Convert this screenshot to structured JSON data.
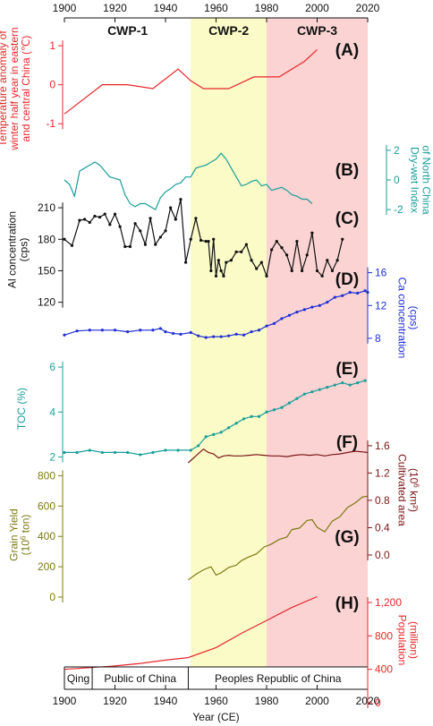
{
  "figure": {
    "xlabel": "Year (CE)",
    "xlim": [
      1900,
      2020
    ],
    "x_ticks": [
      1900,
      1920,
      1940,
      1960,
      1980,
      2000,
      2020
    ],
    "periods": [
      {
        "label": "CWP-1",
        "start": 1900,
        "end": 1950,
        "color": "#ffffff"
      },
      {
        "label": "CWP-2",
        "start": 1950,
        "end": 1980,
        "color": "#fbfbc8"
      },
      {
        "label": "CWP-3",
        "start": 1980,
        "end": 2020,
        "color": "#fbd3d3"
      }
    ],
    "regimes": [
      {
        "label": "Qing",
        "start": 1900,
        "end": 1911
      },
      {
        "label": "Public of China",
        "start": 1911,
        "end": 1949
      },
      {
        "label": "Peoples Republic of China",
        "start": 1949,
        "end": 2020
      }
    ]
  },
  "chart_data": [
    {
      "panel": "(A)",
      "type": "line",
      "color": "#e8262a",
      "ylabel": [
        "Temperature anomaly of",
        "winter half year in eastern",
        "and central China (℃)"
      ],
      "ylim": [
        -1.5,
        1.3
      ],
      "yticks": [
        -1,
        0,
        1
      ],
      "ytick_labels": [
        "-1",
        "0",
        "1"
      ],
      "axis": "left",
      "x": [
        1900,
        1915,
        1925,
        1935,
        1945,
        1950,
        1955,
        1965,
        1975,
        1985,
        1995,
        2000
      ],
      "y": [
        -0.75,
        0.0,
        0.0,
        -0.1,
        0.4,
        0.1,
        -0.1,
        -0.1,
        0.2,
        0.2,
        0.6,
        0.9
      ]
    },
    {
      "panel": "(B)",
      "type": "line",
      "color": "#1a9e9a",
      "ylabel": [
        "Dry-wet Index",
        "of North China"
      ],
      "ylim": [
        -3.2,
        3.2
      ],
      "yticks": [
        -2,
        0,
        2
      ],
      "ytick_labels": [
        "-2",
        "0",
        "2"
      ],
      "axis": "right",
      "x": [
        1900,
        1902,
        1904,
        1906,
        1908,
        1910,
        1912,
        1914,
        1916,
        1918,
        1920,
        1922,
        1924,
        1926,
        1928,
        1930,
        1932,
        1934,
        1936,
        1938,
        1940,
        1942,
        1944,
        1946,
        1948,
        1950,
        1952,
        1954,
        1956,
        1958,
        1960,
        1962,
        1964,
        1966,
        1968,
        1970,
        1972,
        1974,
        1976,
        1978,
        1980,
        1982,
        1984,
        1986,
        1988,
        1990,
        1992,
        1994,
        1996,
        1998
      ],
      "y": [
        0.0,
        -0.3,
        -1.1,
        0.6,
        0.8,
        1.0,
        1.2,
        1.0,
        0.6,
        0.2,
        0.1,
        0.0,
        -1.0,
        -1.6,
        -1.8,
        -1.6,
        -1.6,
        -1.8,
        -2.0,
        -1.2,
        -0.8,
        -0.6,
        -0.3,
        -0.2,
        0.2,
        0.2,
        0.8,
        0.9,
        1.0,
        1.2,
        1.4,
        1.8,
        1.4,
        0.8,
        0.2,
        -0.4,
        -0.3,
        -0.1,
        0.0,
        -0.4,
        -0.3,
        -0.7,
        -0.6,
        -0.5,
        -0.7,
        -1.0,
        -1.1,
        -1.3,
        -1.3,
        -1.6
      ]
    },
    {
      "panel": "(C)",
      "type": "line",
      "color": "#111111",
      "markers": true,
      "ylabel": [
        "Al concentration",
        "(cps)"
      ],
      "ylim": [
        118,
        222
      ],
      "yticks": [
        120,
        150,
        180,
        210
      ],
      "ytick_labels": [
        "120",
        "150",
        "180",
        "210"
      ],
      "axis": "left",
      "x": [
        1900,
        1903,
        1906,
        1908,
        1910,
        1912,
        1914,
        1916,
        1918,
        1920,
        1922,
        1924,
        1926,
        1928,
        1930,
        1932,
        1934,
        1936,
        1938,
        1940,
        1942,
        1944,
        1946,
        1948,
        1950,
        1952,
        1954,
        1956,
        1957,
        1958,
        1959,
        1960,
        1961,
        1962,
        1963,
        1964,
        1966,
        1968,
        1970,
        1972,
        1974,
        1976,
        1978,
        1980,
        1982,
        1984,
        1986,
        1988,
        1990,
        1992,
        1994,
        1996,
        1998,
        2000,
        2002,
        2004,
        2006,
        2008,
        2010
      ],
      "y": [
        180,
        174,
        198,
        199,
        196,
        202,
        201,
        204,
        194,
        204,
        192,
        173,
        173,
        195,
        188,
        175,
        200,
        175,
        182,
        188,
        210,
        199,
        218,
        158,
        180,
        200,
        179,
        178,
        178,
        150,
        180,
        145,
        160,
        150,
        145,
        158,
        160,
        168,
        168,
        175,
        160,
        152,
        158,
        145,
        170,
        178,
        172,
        165,
        150,
        178,
        150,
        165,
        186,
        150,
        145,
        160,
        150,
        160,
        180
      ]
    },
    {
      "panel": "(D)",
      "type": "line",
      "color": "#1f2fd4",
      "markers": true,
      "ylabel": [
        "Ca concentration",
        "(cps)"
      ],
      "ylim": [
        4.5,
        16.5
      ],
      "yticks": [
        8,
        12,
        16
      ],
      "ytick_labels": [
        "8",
        "12",
        "16"
      ],
      "axis": "right",
      "x": [
        1900,
        1905,
        1910,
        1915,
        1920,
        1925,
        1930,
        1935,
        1938,
        1940,
        1943,
        1946,
        1950,
        1953,
        1956,
        1959,
        1962,
        1965,
        1968,
        1971,
        1974,
        1977,
        1980,
        1983,
        1986,
        1989,
        1992,
        1995,
        1998,
        2001,
        2004,
        2007,
        2010,
        2013,
        2016,
        2019,
        2020
      ],
      "y": [
        8.4,
        8.9,
        9.0,
        9.0,
        9.0,
        8.8,
        9.0,
        9.0,
        9.2,
        8.8,
        8.6,
        8.5,
        8.7,
        8.3,
        8.1,
        8.2,
        8.2,
        8.3,
        8.5,
        8.4,
        8.8,
        9.0,
        9.5,
        9.8,
        10.4,
        10.8,
        11.2,
        11.5,
        11.8,
        12.0,
        12.4,
        13.0,
        13.2,
        13.6,
        13.5,
        13.8,
        13.6
      ]
    },
    {
      "panel": "(E)",
      "type": "line",
      "color": "#1a9e9a",
      "markers": true,
      "ylabel": [
        "TOC (%)"
      ],
      "ylim": [
        1.7,
        6.6
      ],
      "yticks": [
        2,
        4,
        6
      ],
      "ytick_labels": [
        "2",
        "4",
        "6"
      ],
      "axis": "left",
      "x": [
        1900,
        1905,
        1910,
        1915,
        1920,
        1925,
        1930,
        1935,
        1940,
        1945,
        1950,
        1953,
        1956,
        1959,
        1962,
        1965,
        1968,
        1971,
        1974,
        1977,
        1980,
        1983,
        1986,
        1989,
        1992,
        1995,
        1998,
        2001,
        2004,
        2007,
        2010,
        2013,
        2016,
        2019
      ],
      "y": [
        2.2,
        2.2,
        2.3,
        2.2,
        2.2,
        2.2,
        2.1,
        2.2,
        2.3,
        2.3,
        2.3,
        2.5,
        2.9,
        3.0,
        3.1,
        3.3,
        3.5,
        3.7,
        3.8,
        3.8,
        4.0,
        4.1,
        4.2,
        4.4,
        4.6,
        4.8,
        4.9,
        5.0,
        5.1,
        5.2,
        5.3,
        5.2,
        5.3,
        5.4
      ]
    },
    {
      "panel": "(F)",
      "type": "line",
      "color": "#7a1515",
      "ylabel": [
        "Cultivated area",
        "(10^6 km²)"
      ],
      "ylim": [
        0.0,
        1.9
      ],
      "yticks": [
        0.0,
        0.4,
        0.8,
        1.2,
        1.6
      ],
      "ytick_labels": [
        "0.0",
        "0.4",
        "0.8",
        "1.2",
        "1.6"
      ],
      "axis": "right",
      "x": [
        1949,
        1952,
        1955,
        1957,
        1959,
        1961,
        1963,
        1965,
        1967,
        1970,
        1973,
        1976,
        1979,
        1982,
        1985,
        1988,
        1991,
        1994,
        1997,
        2000,
        2003,
        2006,
        2009,
        2012,
        2015,
        2018,
        2020
      ],
      "y": [
        1.35,
        1.45,
        1.55,
        1.5,
        1.48,
        1.42,
        1.45,
        1.46,
        1.45,
        1.45,
        1.46,
        1.47,
        1.46,
        1.45,
        1.45,
        1.44,
        1.46,
        1.47,
        1.46,
        1.47,
        1.45,
        1.47,
        1.48,
        1.5,
        1.52,
        1.51,
        1.5
      ]
    },
    {
      "panel": "(G)",
      "type": "line",
      "color": "#7d7a10",
      "ylabel": [
        "Grain Yield",
        "(10^6 ton)"
      ],
      "ylim": [
        0,
        820
      ],
      "yticks": [
        0,
        200,
        400,
        600,
        800
      ],
      "ytick_labels": [
        "0",
        "200",
        "400",
        "600",
        "800"
      ],
      "axis": "left",
      "x": [
        1949,
        1952,
        1955,
        1958,
        1960,
        1962,
        1965,
        1968,
        1970,
        1973,
        1976,
        1979,
        1982,
        1985,
        1988,
        1990,
        1993,
        1996,
        1998,
        2000,
        2003,
        2006,
        2009,
        2012,
        2015,
        2018,
        2020
      ],
      "y": [
        113,
        150,
        180,
        200,
        145,
        160,
        195,
        210,
        240,
        265,
        285,
        330,
        350,
        380,
        395,
        445,
        455,
        505,
        510,
        460,
        430,
        500,
        530,
        590,
        620,
        660,
        665
      ]
    },
    {
      "panel": "(H)",
      "type": "line",
      "color": "#e8262a",
      "ylabel": [
        "Population",
        "(million)"
      ],
      "ylim": [
        0,
        1500
      ],
      "yticks": [
        0,
        400,
        800,
        1200
      ],
      "ytick_labels": [
        "0",
        "400",
        "800",
        "1,200"
      ],
      "axis": "right",
      "x": [
        1900,
        1910,
        1920,
        1930,
        1940,
        1949,
        1960,
        1970,
        1980,
        1990,
        2000
      ],
      "y": [
        400,
        420,
        440,
        470,
        510,
        540,
        660,
        830,
        985,
        1140,
        1270
      ]
    }
  ]
}
